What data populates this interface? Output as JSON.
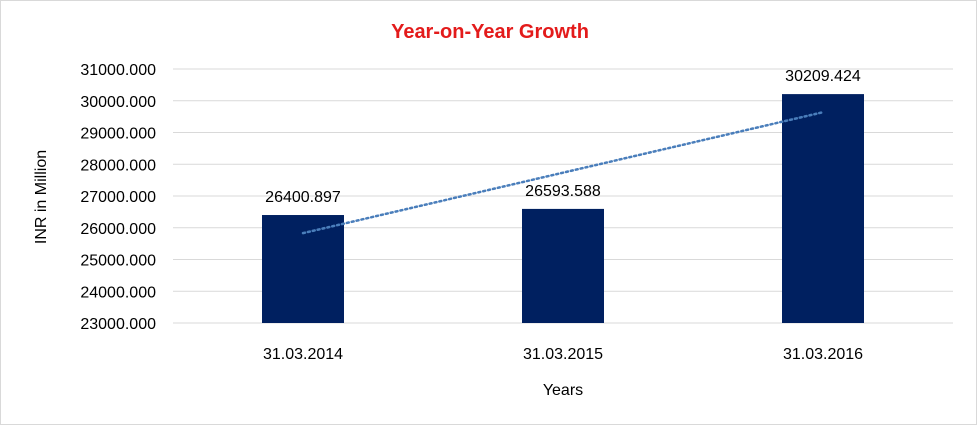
{
  "chart_data": {
    "type": "bar",
    "title": "Year-on-Year Growth",
    "xlabel": "Years",
    "ylabel": "INR in Million",
    "categories": [
      "31.03.2014",
      "31.03.2015",
      "31.03.2016"
    ],
    "values": [
      26400.897,
      26593.588,
      30209.424
    ],
    "data_labels": [
      "26400.897",
      "26593.588",
      "30209.424"
    ],
    "ylim": [
      23000,
      31000
    ],
    "yticks": [
      23000,
      24000,
      25000,
      26000,
      27000,
      28000,
      29000,
      30000,
      31000
    ],
    "ytick_labels": [
      "23000.000",
      "24000.000",
      "25000.000",
      "26000.000",
      "27000.000",
      "28000.000",
      "29000.000",
      "30000.000",
      "31000.000"
    ],
    "trendline": {
      "type": "linear",
      "style": "dotted",
      "color": "#4a7ebb"
    },
    "grid": true,
    "legend": "none",
    "colors": {
      "bar": "#002060",
      "title": "#e31b1b",
      "grid": "#d9d9d9"
    }
  }
}
